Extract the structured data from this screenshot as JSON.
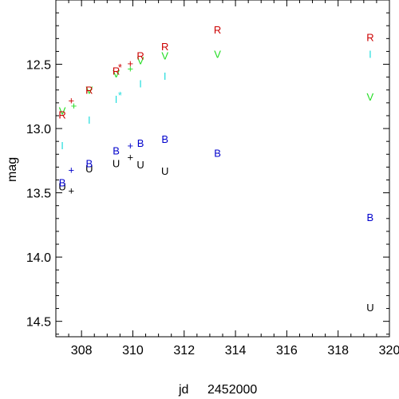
{
  "chart_data": {
    "type": "scatter",
    "xlabel": "jd",
    "xoffset_label": "2452000",
    "ylabel": "mag",
    "xlim": [
      307.0,
      320.0
    ],
    "ylim": [
      14.62,
      12.0
    ],
    "y_inverted": true,
    "grid": false,
    "x_ticks": [
      308,
      310,
      312,
      314,
      316,
      318,
      320
    ],
    "y_ticks": [
      12.5,
      13.0,
      13.5,
      14.0,
      14.5
    ],
    "x_tick_labels": [
      "308",
      "310",
      "312",
      "314",
      "316",
      "318",
      "320"
    ],
    "y_tick_labels": [
      "12.5",
      "13.0",
      "13.5",
      "14.0",
      "14.5"
    ],
    "series": [
      {
        "marker": "U",
        "color": "#000000",
        "points": [
          [
            307.25,
            13.45
          ],
          [
            308.3,
            13.31
          ],
          [
            309.35,
            13.27
          ],
          [
            310.3,
            13.28
          ],
          [
            311.25,
            13.33
          ],
          [
            319.25,
            14.39
          ]
        ]
      },
      {
        "marker": "B",
        "color": "#0000cc",
        "points": [
          [
            307.25,
            13.42
          ],
          [
            308.3,
            13.27
          ],
          [
            309.35,
            13.17
          ],
          [
            310.3,
            13.11
          ],
          [
            311.25,
            13.08
          ],
          [
            313.3,
            13.19
          ],
          [
            319.25,
            13.69
          ]
        ]
      },
      {
        "marker": "V",
        "color": "#22dd22",
        "points": [
          [
            307.25,
            12.86
          ],
          [
            308.3,
            12.7
          ],
          [
            309.35,
            12.57
          ],
          [
            310.3,
            12.47
          ],
          [
            311.25,
            12.43
          ],
          [
            313.3,
            12.42
          ],
          [
            319.25,
            12.75
          ]
        ]
      },
      {
        "marker": "R",
        "color": "#cc0000",
        "points": [
          [
            307.25,
            12.89
          ],
          [
            308.3,
            12.7
          ],
          [
            309.35,
            12.55
          ],
          [
            310.3,
            12.43
          ],
          [
            311.25,
            12.36
          ],
          [
            313.3,
            12.23
          ],
          [
            319.25,
            12.29
          ]
        ]
      },
      {
        "marker": "I",
        "color": "#22dddd",
        "points": [
          [
            307.25,
            13.13
          ],
          [
            308.3,
            12.93
          ],
          [
            309.35,
            12.77
          ],
          [
            310.3,
            12.65
          ],
          [
            311.25,
            12.59
          ],
          [
            319.25,
            12.42
          ]
        ]
      },
      {
        "marker": "+",
        "color": "#000000",
        "points": [
          [
            307.6,
            13.48
          ],
          [
            309.9,
            13.22
          ]
        ]
      },
      {
        "marker": "+",
        "color": "#0000cc",
        "points": [
          [
            307.6,
            13.32
          ],
          [
            309.9,
            13.13
          ]
        ]
      },
      {
        "marker": "+",
        "color": "#22dd22",
        "points": [
          [
            307.7,
            12.82
          ],
          [
            309.9,
            12.53
          ]
        ]
      },
      {
        "marker": "+",
        "color": "#cc0000",
        "points": [
          [
            307.6,
            12.78
          ],
          [
            309.9,
            12.49
          ]
        ]
      },
      {
        "marker": "*",
        "color": "#cc0000",
        "points": [
          [
            309.5,
            12.52
          ]
        ]
      },
      {
        "marker": "*",
        "color": "#22dddd",
        "points": [
          [
            309.5,
            12.74
          ]
        ]
      }
    ]
  }
}
